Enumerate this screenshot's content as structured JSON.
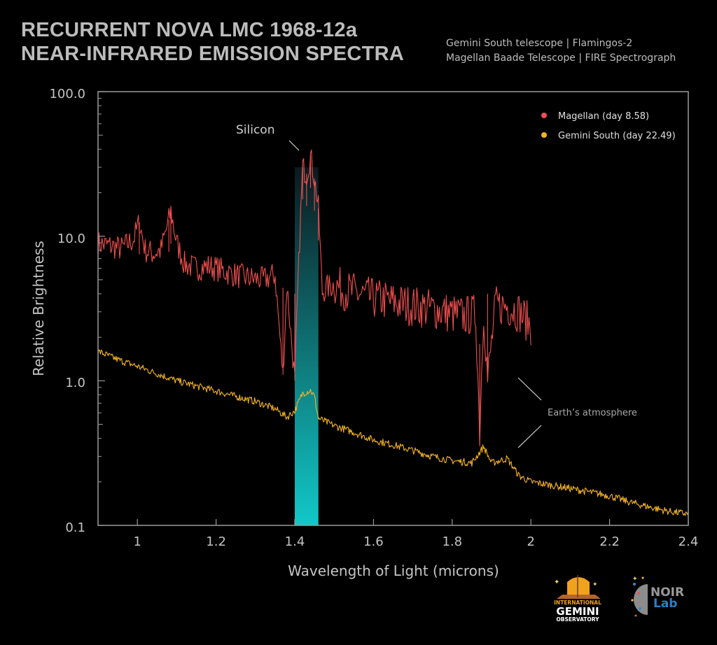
{
  "header": {
    "title_line1": "RECURRENT NOVA LMC 1968-12a",
    "title_line2": "NEAR-INFRARED EMISSION SPECTRA",
    "subtitle_line1": "Gemini South telescope | Flamingos-2",
    "subtitle_line2": "Magellan Baade Telescope | FIRE Spectrograph"
  },
  "logos": {
    "gemini": [
      "INTERNATIONAL",
      "GEMINI",
      "OBSERVATORY"
    ],
    "noirlab": [
      "NOIR",
      "Lab"
    ]
  },
  "chart_data": {
    "type": "line",
    "xlabel": "Wavelength of Light (microns)",
    "ylabel": "Relative Brightness",
    "xlim": [
      0.9,
      2.4
    ],
    "ylim": [
      0.1,
      100.0
    ],
    "yscale": "log",
    "xticks": [
      "1",
      "1.2",
      "1.4",
      "1.6",
      "1.8",
      "2",
      "2.2",
      "2.4"
    ],
    "xtick_values": [
      1,
      1.2,
      1.4,
      1.6,
      1.8,
      2.0,
      2.2,
      2.4
    ],
    "yticks": [
      "100.0",
      "10.0",
      "1.0",
      "0.1"
    ],
    "ytick_values": [
      100,
      10,
      1,
      0.1
    ],
    "grid": false,
    "legend_position": "top-right",
    "highlight_band": {
      "x": [
        1.4,
        1.46
      ],
      "color_top": "#0b1a1e",
      "color_bottom": "#12c8c8"
    },
    "annotations": [
      {
        "text": "Silicon",
        "x": 1.43,
        "y": 35
      },
      {
        "text": "Earth’s atmosphere",
        "x": 1.97,
        "y": 0.9
      }
    ],
    "series": [
      {
        "name": "Magellan (day 8.58)",
        "color": "#f0504f",
        "x": [
          0.9,
          0.93,
          0.96,
          0.99,
          1.005,
          1.02,
          1.04,
          1.06,
          1.08,
          1.085,
          1.1,
          1.12,
          1.15,
          1.18,
          1.2,
          1.23,
          1.26,
          1.29,
          1.32,
          1.35,
          1.37,
          1.38,
          1.4,
          1.41,
          1.42,
          1.43,
          1.44,
          1.45,
          1.46,
          1.47,
          1.48,
          1.5,
          1.53,
          1.56,
          1.6,
          1.63,
          1.66,
          1.7,
          1.73,
          1.76,
          1.8,
          1.83,
          1.86,
          1.87,
          1.88,
          1.89,
          1.91,
          1.94,
          1.97,
          2.0
        ],
        "y": [
          8.9,
          8.6,
          8.2,
          9.5,
          12.5,
          8.0,
          7.6,
          8.0,
          13.0,
          14.8,
          9.0,
          6.4,
          6.0,
          6.2,
          6.0,
          5.6,
          5.3,
          5.1,
          5.0,
          5.4,
          1.1,
          4.6,
          1.0,
          6.4,
          30,
          27,
          36,
          25,
          15.6,
          4.1,
          4.4,
          4.6,
          4.2,
          4.0,
          3.7,
          3.6,
          3.45,
          3.3,
          3.2,
          3.1,
          2.9,
          2.8,
          2.9,
          0.45,
          3.2,
          1.0,
          3.3,
          3.3,
          3.0,
          2.4
        ]
      },
      {
        "name": "Gemini South (day 22.49)",
        "color": "#f5b323",
        "x": [
          0.9,
          0.95,
          1.0,
          1.05,
          1.1,
          1.15,
          1.2,
          1.25,
          1.3,
          1.35,
          1.38,
          1.4,
          1.42,
          1.44,
          1.45,
          1.46,
          1.5,
          1.55,
          1.6,
          1.65,
          1.7,
          1.75,
          1.8,
          1.85,
          1.88,
          1.9,
          1.94,
          1.97,
          2.0,
          2.05,
          2.1,
          2.15,
          2.2,
          2.25,
          2.3,
          2.35,
          2.4
        ],
        "y": [
          1.6,
          1.4,
          1.26,
          1.12,
          1.0,
          0.92,
          0.85,
          0.78,
          0.72,
          0.64,
          0.56,
          0.62,
          0.82,
          0.86,
          0.78,
          0.55,
          0.49,
          0.44,
          0.39,
          0.36,
          0.33,
          0.3,
          0.28,
          0.27,
          0.35,
          0.27,
          0.29,
          0.22,
          0.2,
          0.19,
          0.18,
          0.17,
          0.16,
          0.145,
          0.134,
          0.125,
          0.12
        ]
      }
    ]
  }
}
